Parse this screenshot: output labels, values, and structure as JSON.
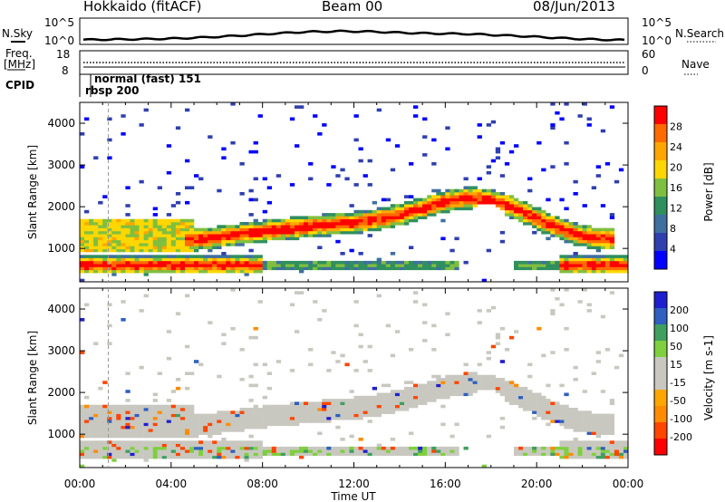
{
  "header": {
    "station": "Hokkaido (fitACF)",
    "beam": "Beam 00",
    "date": "08/Jun/2013"
  },
  "top_panels": {
    "nsky_label": "N.Sky",
    "nsky_ticks": [
      "10^5",
      "10^0"
    ],
    "nsearch_label": "N.Search",
    "nsearch_ticks": [
      "10^5",
      "10^0"
    ],
    "freq_label_1": "Freq.",
    "freq_label_2": "[MHz]",
    "freq_ticks": [
      "18",
      "8"
    ],
    "nave_label": "Nave",
    "nave_ticks": [
      "60",
      "0"
    ],
    "cpid_label": "CPID",
    "cpid_mode_1": "normal (fast) 151",
    "cpid_mode_2": "rbsp 200"
  },
  "colors": {
    "power_scale": [
      "#0000ff",
      "#2f3fb0",
      "#3f6f9f",
      "#2f8f5f",
      "#7fbf3f",
      "#ffd700",
      "#ffa500",
      "#ff6a00",
      "#ff0000"
    ],
    "velocity_scale": [
      "#ff0000",
      "#ff4500",
      "#ff8c00",
      "#ffa500",
      "#c8c8c0",
      "#c8c8c0",
      "#7fcf3f",
      "#3f9f5f",
      "#2f5fbf",
      "#1f1fcf"
    ]
  },
  "chart_data": [
    {
      "type": "heatmap",
      "title": "Power",
      "xlabel": "",
      "ylabel": "Slant Range [km]",
      "xlim": [
        "00:00",
        "00:00"
      ],
      "ylim": [
        200,
        4500
      ],
      "x_ticks": [
        "00:00",
        "04:00",
        "08:00",
        "12:00",
        "16:00",
        "20:00",
        "00:00"
      ],
      "y_ticks": [
        1000,
        2000,
        3000,
        4000
      ],
      "colorbar": {
        "label": "Power [dB]",
        "ticks": [
          4,
          8,
          12,
          16,
          20,
          24,
          28
        ]
      },
      "features": [
        {
          "time_range": [
            "05:00",
            "22:00"
          ],
          "range_km": [
            1400,
            2200
          ],
          "level_db": 20
        },
        {
          "time_range": [
            "00:00",
            "08:00"
          ],
          "range_km": [
            400,
            900
          ],
          "level_db": 28
        },
        {
          "time_range": [
            "17:00",
            "19:30"
          ],
          "range_km": [
            2200,
            2700
          ],
          "level_db": 12
        }
      ]
    },
    {
      "type": "heatmap",
      "title": "Velocity",
      "xlabel": "Time UT",
      "ylabel": "Slant Range [km]",
      "xlim": [
        "00:00",
        "00:00"
      ],
      "ylim": [
        200,
        4500
      ],
      "x_ticks": [
        "00:00",
        "04:00",
        "08:00",
        "12:00",
        "16:00",
        "20:00",
        "00:00"
      ],
      "y_ticks": [
        1000,
        2000,
        3000,
        4000
      ],
      "colorbar": {
        "label": "Velocity [m s-1]",
        "ticks": [
          "200",
          "100",
          "50",
          "15",
          "-15",
          "-50",
          "-100",
          "-200"
        ]
      },
      "features": [
        {
          "time_range": [
            "05:00",
            "22:00"
          ],
          "range_km": [
            1400,
            2200
          ],
          "velocity_ms": 0
        },
        {
          "time_range": [
            "00:00",
            "24:00"
          ],
          "range_km": [
            300,
            900
          ],
          "velocity_ms": 0
        },
        {
          "time_range": [
            "17:00",
            "19:30"
          ],
          "range_km": [
            2200,
            2700
          ],
          "velocity_ms": 30
        }
      ]
    }
  ],
  "line_data": {
    "nsky_profile": [
      0.12,
      0.14,
      0.16,
      0.2,
      0.28,
      0.38,
      0.5,
      0.6,
      0.64,
      0.62,
      0.55,
      0.5,
      0.48,
      0.4,
      0.32,
      0.22,
      0.14,
      0.1
    ]
  }
}
